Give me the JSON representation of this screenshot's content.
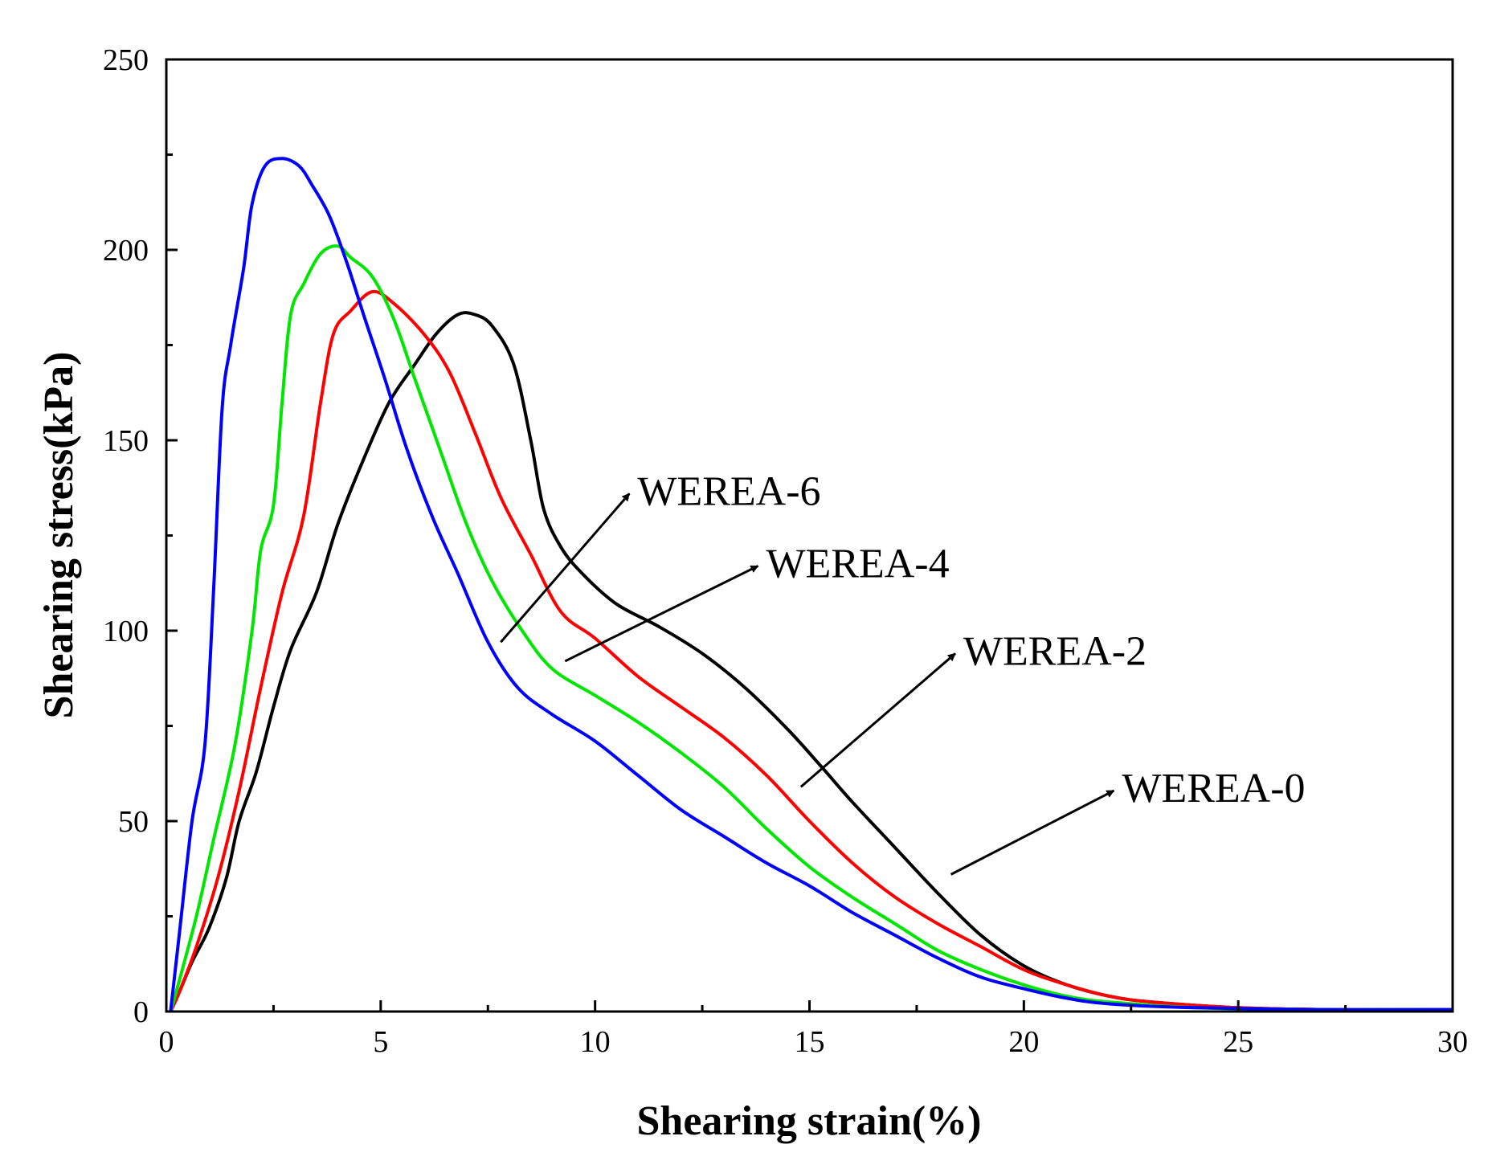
{
  "chart_data": {
    "type": "line",
    "title": "",
    "xlabel": "Shearing strain(%)",
    "ylabel": "Shearing stress(kPa)",
    "xlim": [
      0,
      30
    ],
    "ylim": [
      0,
      250
    ],
    "xticks": [
      0,
      5,
      10,
      15,
      20,
      25,
      30
    ],
    "yticks": [
      0,
      50,
      100,
      150,
      200,
      250
    ],
    "grid": false,
    "series": [
      {
        "name": "WEREA-0",
        "color": "#000000",
        "points": [
          [
            0.1,
            0
          ],
          [
            0.3,
            5
          ],
          [
            0.6,
            13
          ],
          [
            1.0,
            22
          ],
          [
            1.4,
            35
          ],
          [
            1.7,
            50
          ],
          [
            2.1,
            63
          ],
          [
            2.5,
            80
          ],
          [
            2.9,
            95
          ],
          [
            3.5,
            110
          ],
          [
            4.0,
            128
          ],
          [
            4.6,
            145
          ],
          [
            5.2,
            160
          ],
          [
            5.8,
            170
          ],
          [
            6.3,
            178
          ],
          [
            6.8,
            183
          ],
          [
            7.2,
            183
          ],
          [
            7.6,
            180
          ],
          [
            8.1,
            170
          ],
          [
            8.5,
            150
          ],
          [
            8.8,
            132
          ],
          [
            9.2,
            122
          ],
          [
            9.7,
            115
          ],
          [
            10.5,
            107
          ],
          [
            11.5,
            101
          ],
          [
            12.5,
            94
          ],
          [
            13.5,
            85
          ],
          [
            14.5,
            74
          ],
          [
            15.3,
            64
          ],
          [
            16.0,
            55
          ],
          [
            17.0,
            43
          ],
          [
            18.0,
            31
          ],
          [
            19.0,
            20
          ],
          [
            20.0,
            12
          ],
          [
            21.0,
            7
          ],
          [
            22.0,
            4
          ],
          [
            23.0,
            2.5
          ],
          [
            25.0,
            1
          ],
          [
            27.0,
            0.5
          ],
          [
            30.0,
            0.5
          ]
        ]
      },
      {
        "name": "WEREA-2",
        "color": "#ff0000",
        "points": [
          [
            0.1,
            0
          ],
          [
            0.3,
            5
          ],
          [
            0.7,
            17
          ],
          [
            1.2,
            35
          ],
          [
            1.7,
            58
          ],
          [
            2.2,
            85
          ],
          [
            2.7,
            110
          ],
          [
            3.2,
            130
          ],
          [
            3.6,
            160
          ],
          [
            3.9,
            178
          ],
          [
            4.3,
            184
          ],
          [
            4.8,
            189
          ],
          [
            5.3,
            186
          ],
          [
            6.0,
            178
          ],
          [
            6.6,
            168
          ],
          [
            7.2,
            152
          ],
          [
            7.8,
            135
          ],
          [
            8.5,
            120
          ],
          [
            9.2,
            105
          ],
          [
            10.0,
            98
          ],
          [
            11.0,
            88
          ],
          [
            12.0,
            80
          ],
          [
            13.0,
            72
          ],
          [
            14.0,
            62
          ],
          [
            15.0,
            50
          ],
          [
            16.0,
            39
          ],
          [
            17.0,
            30
          ],
          [
            18.0,
            23
          ],
          [
            19.0,
            17
          ],
          [
            20.0,
            11
          ],
          [
            21.0,
            7
          ],
          [
            22.0,
            4
          ],
          [
            23.0,
            2.5
          ],
          [
            25.0,
            1
          ],
          [
            27.0,
            0.5
          ],
          [
            30.0,
            0.5
          ]
        ]
      },
      {
        "name": "WEREA-4",
        "color": "#00e600",
        "points": [
          [
            0.1,
            0
          ],
          [
            0.3,
            8
          ],
          [
            0.7,
            25
          ],
          [
            1.1,
            45
          ],
          [
            1.6,
            70
          ],
          [
            2.0,
            100
          ],
          [
            2.2,
            121
          ],
          [
            2.5,
            133
          ],
          [
            2.7,
            160
          ],
          [
            2.9,
            183
          ],
          [
            3.2,
            191
          ],
          [
            3.6,
            199
          ],
          [
            4.0,
            201
          ],
          [
            4.3,
            198
          ],
          [
            4.8,
            193
          ],
          [
            5.3,
            182
          ],
          [
            5.8,
            166
          ],
          [
            6.4,
            147
          ],
          [
            7.0,
            128
          ],
          [
            7.6,
            113
          ],
          [
            8.3,
            100
          ],
          [
            9.0,
            90
          ],
          [
            10.0,
            83
          ],
          [
            11.0,
            76
          ],
          [
            12.0,
            68
          ],
          [
            13.0,
            59
          ],
          [
            14.0,
            48
          ],
          [
            15.0,
            38
          ],
          [
            16.0,
            30
          ],
          [
            17.0,
            23
          ],
          [
            18.0,
            16
          ],
          [
            19.0,
            11
          ],
          [
            20.0,
            7
          ],
          [
            21.0,
            4
          ],
          [
            22.0,
            2.5
          ],
          [
            24.0,
            1
          ],
          [
            27.0,
            0.5
          ],
          [
            30.0,
            0.5
          ]
        ]
      },
      {
        "name": "WEREA-6",
        "color": "#0000ff",
        "points": [
          [
            0.1,
            0
          ],
          [
            0.3,
            20
          ],
          [
            0.6,
            50
          ],
          [
            0.9,
            70
          ],
          [
            1.1,
            110
          ],
          [
            1.3,
            158
          ],
          [
            1.5,
            175
          ],
          [
            1.8,
            195
          ],
          [
            2.0,
            212
          ],
          [
            2.3,
            222
          ],
          [
            2.7,
            224
          ],
          [
            3.1,
            222
          ],
          [
            3.4,
            217
          ],
          [
            3.8,
            209
          ],
          [
            4.2,
            197
          ],
          [
            4.6,
            183
          ],
          [
            5.1,
            166
          ],
          [
            5.6,
            148
          ],
          [
            6.2,
            130
          ],
          [
            6.8,
            115
          ],
          [
            7.5,
            97
          ],
          [
            8.2,
            85
          ],
          [
            9.0,
            78
          ],
          [
            10.0,
            71
          ],
          [
            11.0,
            62
          ],
          [
            12.0,
            53
          ],
          [
            13.0,
            46
          ],
          [
            14.0,
            39
          ],
          [
            15.0,
            33
          ],
          [
            16.0,
            26
          ],
          [
            17.0,
            20
          ],
          [
            18.0,
            14
          ],
          [
            19.0,
            9
          ],
          [
            20.0,
            6
          ],
          [
            21.0,
            3.5
          ],
          [
            22.0,
            2
          ],
          [
            24.0,
            1
          ],
          [
            27.0,
            0.5
          ],
          [
            30.0,
            0.5
          ]
        ]
      }
    ],
    "annotations": [
      {
        "text": "WEREA-6",
        "from": [
          7.8,
          97
        ],
        "to": [
          10.8,
          136
        ]
      },
      {
        "text": "WEREA-4",
        "from": [
          9.3,
          92
        ],
        "to": [
          13.8,
          117
        ]
      },
      {
        "text": "WEREA-2",
        "from": [
          14.8,
          59
        ],
        "to": [
          18.4,
          94
        ]
      },
      {
        "text": "WEREA-0",
        "from": [
          18.3,
          36
        ],
        "to": [
          22.1,
          58
        ]
      }
    ]
  }
}
